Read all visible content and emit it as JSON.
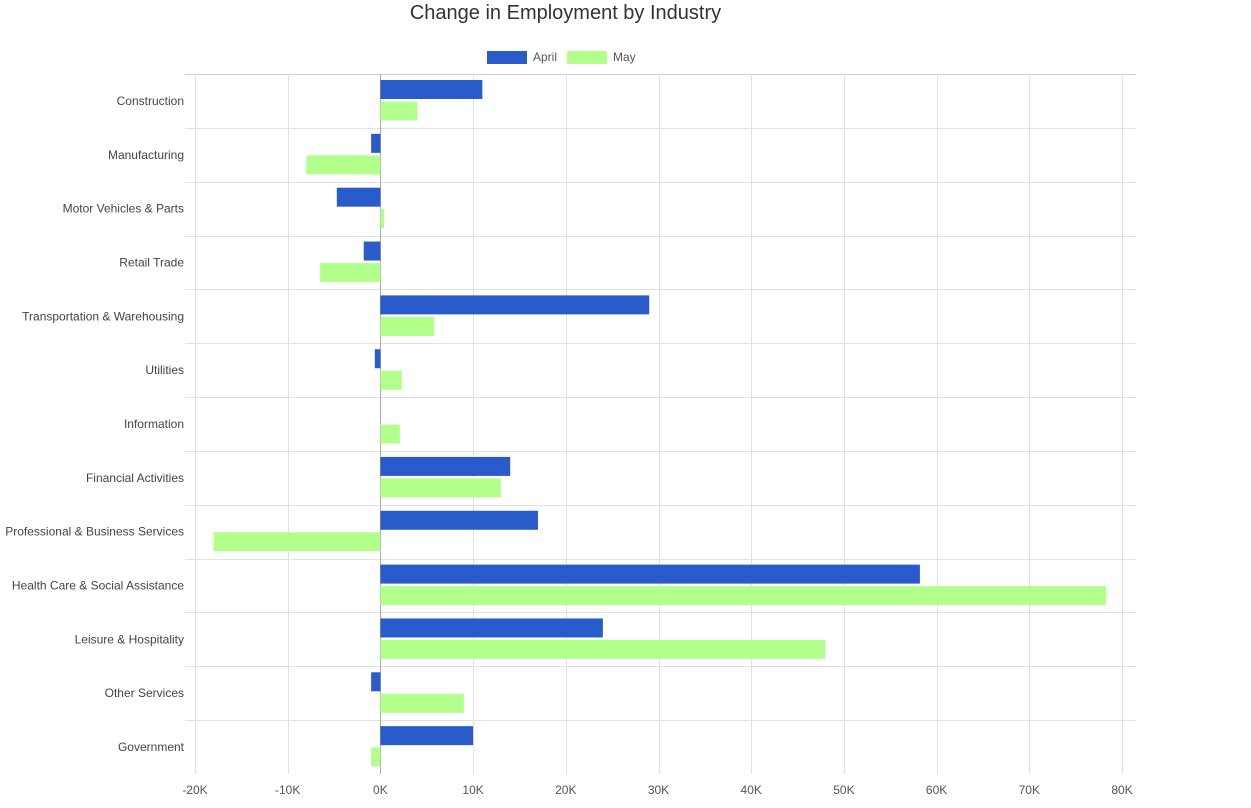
{
  "chart_data": {
    "type": "bar",
    "orientation": "horizontal",
    "title": "Change in Employment by Industry",
    "xlabel": "",
    "ylabel": "",
    "xlim": [
      -20000,
      80000
    ],
    "x_ticks": [
      "-20K",
      "-10K",
      "0K",
      "10K",
      "20K",
      "30K",
      "40K",
      "50K",
      "60K",
      "70K",
      "80K"
    ],
    "grid": true,
    "legend_position": "top",
    "categories": [
      "Construction",
      "Manufacturing",
      "Motor Vehicles & Parts",
      "Retail Trade",
      "Transportation & Warehousing",
      "Utilities",
      "Information",
      "Financial Activities",
      "Professional & Business Services",
      "Health Care & Social Assistance",
      "Leisure & Hospitality",
      "Other Services",
      "Government"
    ],
    "series": [
      {
        "name": "April",
        "color": "#2a5bcb",
        "values": [
          11000,
          -1000,
          -4700,
          -1800,
          29000,
          -600,
          0,
          14000,
          17000,
          58200,
          24000,
          -1000,
          10000
        ]
      },
      {
        "name": "May",
        "color": "#b3ff8c",
        "values": [
          4000,
          -8000,
          400,
          -6500,
          5800,
          2300,
          2100,
          13000,
          -18000,
          78300,
          48000,
          9000,
          -1000
        ]
      }
    ]
  }
}
